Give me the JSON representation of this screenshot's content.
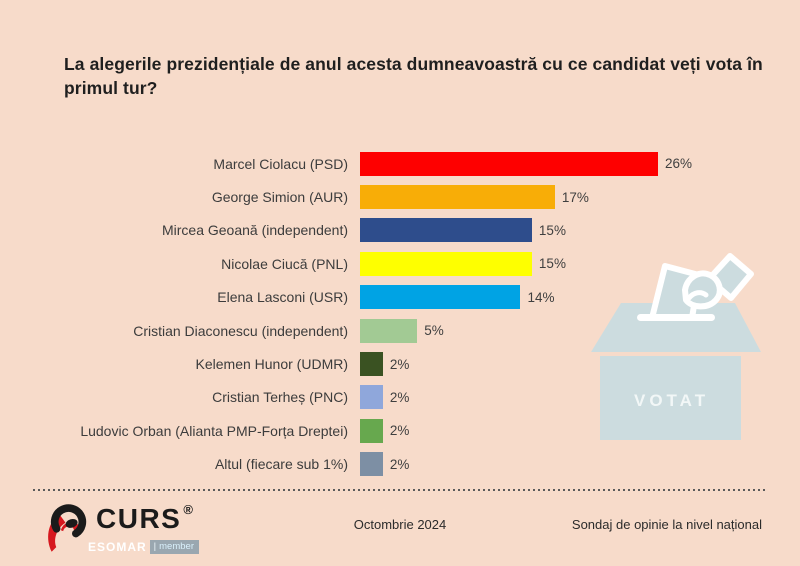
{
  "title": "La alegerile prezidențiale de anul acesta dumneavoastră cu ce candidat veți vota în primul tur?",
  "chart_data": {
    "type": "bar",
    "orientation": "horizontal",
    "categories": [
      "Marcel Ciolacu (PSD)",
      "George Simion (AUR)",
      "Mircea Geoană (independent)",
      "Nicolae Ciucă (PNL)",
      "Elena Lasconi (USR)",
      "Cristian Diaconescu (independent)",
      "Kelemen Hunor (UDMR)",
      "Cristian Terheș (PNC)",
      "Ludovic Orban (Alianta PMP-Forța Dreptei)",
      "Altul (fiecare sub 1%)"
    ],
    "values": [
      26,
      17,
      15,
      15,
      14,
      5,
      2,
      2,
      2,
      2
    ],
    "value_labels": [
      "26%",
      "17%",
      "15%",
      "15%",
      "14%",
      "5%",
      "2%",
      "2%",
      "2%",
      "2%"
    ],
    "bar_colors": [
      "#fe0000",
      "#f8ad07",
      "#2e4d8c",
      "#feff00",
      "#00a3e4",
      "#a2ca94",
      "#3a5222",
      "#8fa7db",
      "#67a84e",
      "#7d8fa4"
    ],
    "xlim": [
      0,
      26
    ],
    "grid": false,
    "legend": "none",
    "title": "La alegerile prezidențiale de anul acesta dumneavoastră cu ce candidat veți vota în primul tur?"
  },
  "ballot_box": {
    "label": "VOTAT",
    "box_color": "#ccdcdf",
    "outline_color": "#ffffff"
  },
  "footer": {
    "logo": "CURS",
    "logo_reg": "®",
    "logo_sub": "ESOMAR",
    "logo_sub_pipe": "|",
    "logo_sub2": "member",
    "date": "Octombrie 2024",
    "note": "Sondaj de opinie la nivel național"
  },
  "colors": {
    "background": "#f7dbca",
    "title_text": "#1f1f1f",
    "label_text": "#3c3c3c",
    "logo_red": "#d6181f",
    "logo_black": "#1b1b1b"
  }
}
